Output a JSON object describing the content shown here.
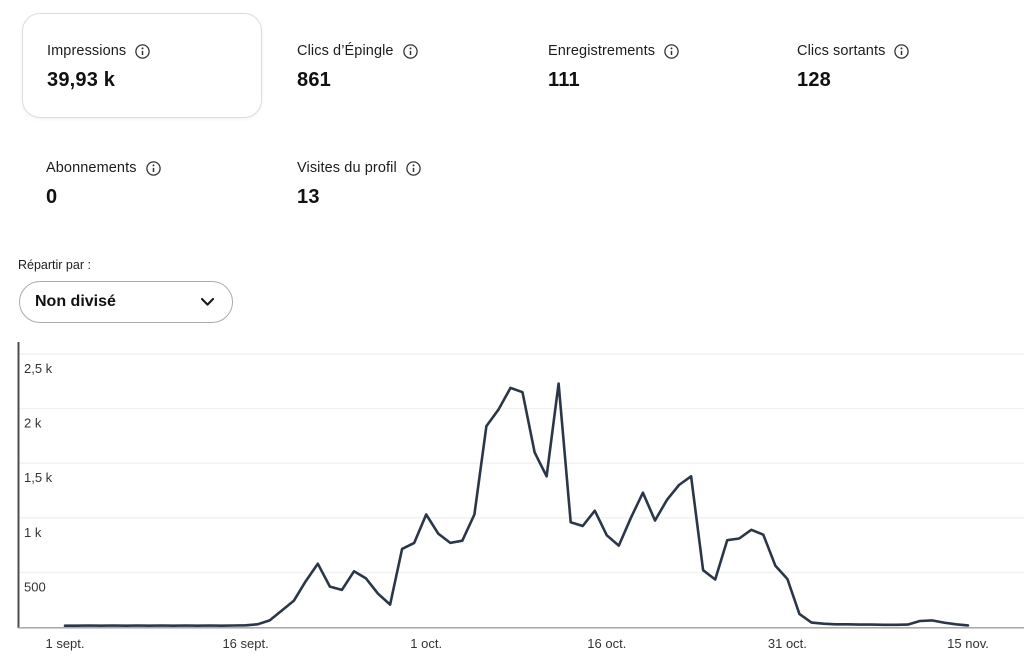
{
  "metrics": [
    {
      "label": "Impressions",
      "value": "39,93 k",
      "selected": true
    },
    {
      "label": "Clics d’Épingle",
      "value": "861",
      "selected": false
    },
    {
      "label": "Enregistrements",
      "value": "111",
      "selected": false
    },
    {
      "label": "Clics sortants",
      "value": "128",
      "selected": false
    },
    {
      "label": "Abonnements",
      "value": "0",
      "selected": false
    },
    {
      "label": "Visites du profil",
      "value": "13",
      "selected": false
    }
  ],
  "split_by": {
    "label": "Répartir par :",
    "selected_option": "Non divisé"
  },
  "chart_data": {
    "type": "line",
    "ylim": [
      0,
      2500
    ],
    "grid": true,
    "line_color": "#2b3648",
    "grid_color": "#f1f1f1",
    "y_axis_color": "#4d4d4d",
    "x_axis_color": "#9e9e9e",
    "tick_label_color": "#333333",
    "y_ticks": [
      {
        "value": 2500,
        "label": "2,5 k"
      },
      {
        "value": 2000,
        "label": "2 k"
      },
      {
        "value": 1500,
        "label": "1,5 k"
      },
      {
        "value": 1000,
        "label": "1 k"
      },
      {
        "value": 500,
        "label": "500"
      }
    ],
    "x_ticks": [
      {
        "day": 0,
        "label": "1 sept."
      },
      {
        "day": 15,
        "label": "16 sept."
      },
      {
        "day": 30,
        "label": "1 oct."
      },
      {
        "day": 45,
        "label": "16 oct."
      },
      {
        "day": 60,
        "label": "31 oct."
      },
      {
        "day": 75,
        "label": "15 nov."
      }
    ],
    "series": [
      {
        "name": "Impressions",
        "daily_values": [
          12,
          12,
          14,
          12,
          14,
          12,
          14,
          12,
          14,
          12,
          14,
          12,
          14,
          12,
          14,
          16,
          25,
          60,
          150,
          240,
          420,
          580,
          370,
          340,
          510,
          445,
          305,
          205,
          715,
          770,
          1030,
          855,
          770,
          790,
          1030,
          1840,
          1990,
          2190,
          2150,
          1600,
          1380,
          2230,
          960,
          925,
          1065,
          840,
          745,
          1000,
          1230,
          975,
          1165,
          1300,
          1380,
          520,
          435,
          795,
          810,
          890,
          845,
          560,
          440,
          120,
          40,
          30,
          25,
          25,
          22,
          22,
          20,
          20,
          22,
          55,
          60,
          40,
          25,
          15
        ]
      }
    ]
  }
}
